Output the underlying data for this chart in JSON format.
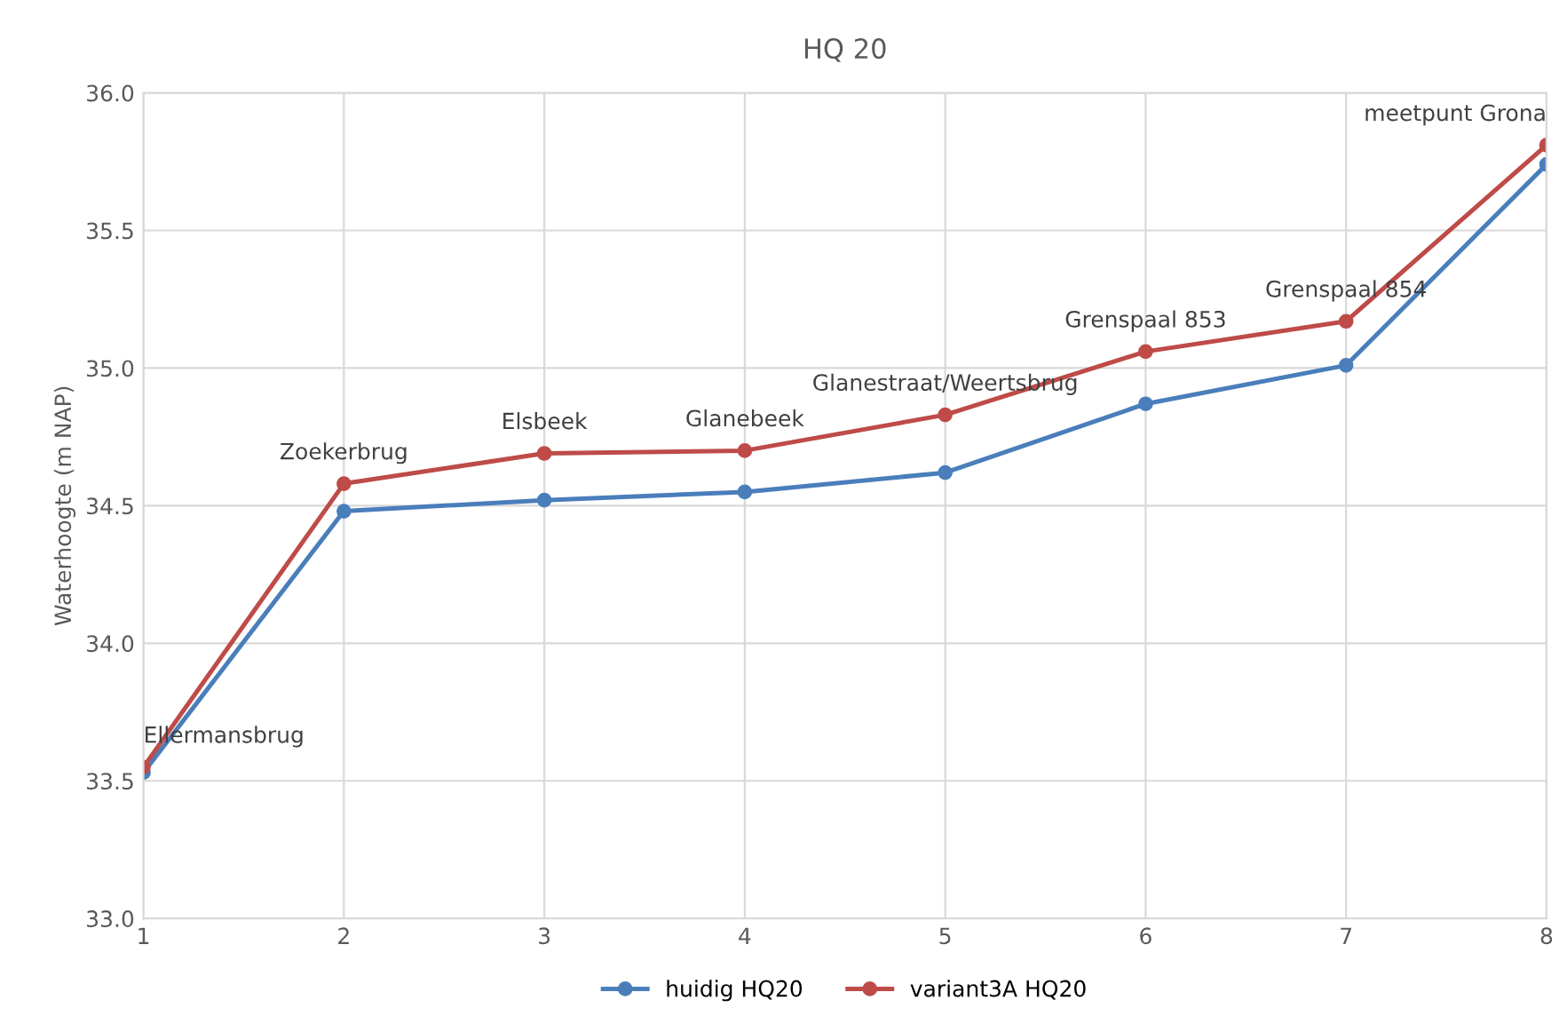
{
  "chart_data": {
    "type": "line",
    "title": "HQ 20",
    "ylabel": "Waterhoogte (m NAP)",
    "x": [
      1,
      2,
      3,
      4,
      5,
      6,
      7,
      8
    ],
    "series": [
      {
        "name": "huidig HQ20",
        "color": "#4a7ebb",
        "values": [
          33.53,
          34.48,
          34.52,
          34.55,
          34.62,
          34.87,
          35.01,
          35.74
        ]
      },
      {
        "name": "variant3A HQ20",
        "color": "#be4b48",
        "values": [
          33.55,
          34.58,
          34.69,
          34.7,
          34.83,
          35.06,
          35.17,
          35.81
        ]
      }
    ],
    "annotations": [
      {
        "text": "Ellermansbrug",
        "x": 1,
        "y": 33.55
      },
      {
        "text": "Zoekerbrug",
        "x": 2,
        "y": 34.58
      },
      {
        "text": "Elsbeek",
        "x": 3,
        "y": 34.69
      },
      {
        "text": "Glanebeek",
        "x": 4,
        "y": 34.7
      },
      {
        "text": "Glanestraat/Weertsbrug",
        "x": 5,
        "y": 34.83
      },
      {
        "text": "Grenspaal 853",
        "x": 6,
        "y": 35.06
      },
      {
        "text": "Grenspaal 854",
        "x": 7,
        "y": 35.17
      },
      {
        "text": "meetpunt Grona",
        "x": 8,
        "y": 35.81
      }
    ],
    "xlim": [
      1,
      8
    ],
    "xticks": [
      1,
      2,
      3,
      4,
      5,
      6,
      7,
      8
    ],
    "ylim": [
      33.0,
      36.0
    ],
    "yticks": [
      {
        "value": 33.0,
        "label": "33.0"
      },
      {
        "value": 33.5,
        "label": "33.5"
      },
      {
        "value": 34.0,
        "label": "34.0"
      },
      {
        "value": 34.5,
        "label": "34.5"
      },
      {
        "value": 35.0,
        "label": "35.0"
      },
      {
        "value": 35.5,
        "label": "35.5"
      },
      {
        "value": 36.0,
        "label": "36.0"
      }
    ],
    "grid": true,
    "legend": "bottom",
    "marker": "circle",
    "line_style": "solid"
  }
}
